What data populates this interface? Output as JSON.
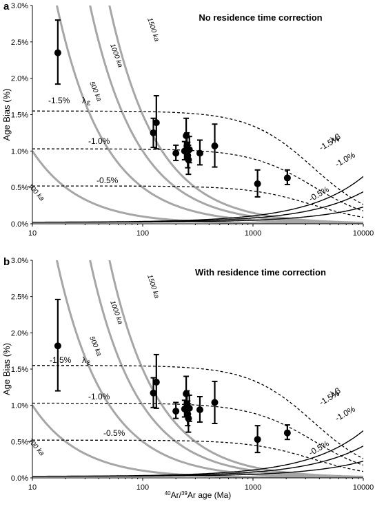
{
  "chart_data": [
    {
      "type": "scatter",
      "panel_label": "a",
      "title": "No residence time correction",
      "xlabel_parts": [
        "40",
        "Ar/",
        "39",
        "Ar age (Ma)"
      ],
      "ylabel": "Age Bias (%)",
      "xscale": "log",
      "xlim": [
        10,
        10000
      ],
      "ylim": [
        0,
        3.0
      ],
      "xticks": [
        "10",
        "100",
        "1000",
        "10000"
      ],
      "yticks": [
        "0.0%",
        "0.5%",
        "1.0%",
        "1.5%",
        "2.0%",
        "2.5%",
        "3.0%"
      ],
      "points": [
        {
          "x": 17,
          "y": 2.35,
          "err_low": 1.92,
          "err_high": 2.8
        },
        {
          "x": 125,
          "y": 1.25,
          "err_low": 1.05,
          "err_high": 1.45
        },
        {
          "x": 133,
          "y": 1.39,
          "err_low": 1.03,
          "err_high": 1.76
        },
        {
          "x": 200,
          "y": 0.97,
          "err_low": 0.87,
          "err_high": 1.08
        },
        {
          "x": 240,
          "y": 1.0,
          "err_low": 0.88,
          "err_high": 1.13
        },
        {
          "x": 248,
          "y": 1.21,
          "err_low": 0.98,
          "err_high": 1.45
        },
        {
          "x": 252,
          "y": 1.07,
          "err_low": 0.9,
          "err_high": 1.25
        },
        {
          "x": 256,
          "y": 0.94,
          "err_low": 0.77,
          "err_high": 1.12
        },
        {
          "x": 260,
          "y": 0.88,
          "err_low": 0.68,
          "err_high": 1.08
        },
        {
          "x": 265,
          "y": 1.02,
          "err_low": 0.84,
          "err_high": 1.2
        },
        {
          "x": 330,
          "y": 0.97,
          "err_low": 0.81,
          "err_high": 1.15
        },
        {
          "x": 450,
          "y": 1.07,
          "err_low": 0.78,
          "err_high": 1.37
        },
        {
          "x": 1100,
          "y": 0.55,
          "err_low": 0.37,
          "err_high": 0.74
        },
        {
          "x": 2050,
          "y": 0.63,
          "err_low": 0.54,
          "err_high": 0.74
        }
      ],
      "isochron_labels": [
        "100 ka",
        "500 ka",
        "1000 ka",
        "1500 ka"
      ],
      "lambda_e_labels": [
        "-1.5%",
        "-1.0%",
        "-0.5%"
      ],
      "lambda_e_symbol": "λ",
      "lambda_e_subscript": "ε",
      "lambda_b_labels": [
        "-1.5%",
        "-1.0%",
        "-0.5%"
      ],
      "lambda_b_symbol": "λ",
      "lambda_b_subscript": "β",
      "isochron_color": "#a6a6a6"
    },
    {
      "type": "scatter",
      "panel_label": "b",
      "title": "With residence time correction",
      "xlabel_parts": [
        "40",
        "Ar/",
        "39",
        "Ar age (Ma)"
      ],
      "ylabel": "Age Bias (%)",
      "xscale": "log",
      "xlim": [
        10,
        10000
      ],
      "ylim": [
        0,
        3.0
      ],
      "xticks": [
        "10",
        "100",
        "1000",
        "10000"
      ],
      "yticks": [
        "0.0%",
        "0.5%",
        "1.0%",
        "1.5%",
        "2.0%",
        "2.5%",
        "3.0%"
      ],
      "points": [
        {
          "x": 17,
          "y": 1.82,
          "err_low": 1.2,
          "err_high": 2.46
        },
        {
          "x": 125,
          "y": 1.17,
          "err_low": 0.97,
          "err_high": 1.38
        },
        {
          "x": 133,
          "y": 1.32,
          "err_low": 0.96,
          "err_high": 1.7
        },
        {
          "x": 200,
          "y": 0.92,
          "err_low": 0.82,
          "err_high": 1.04
        },
        {
          "x": 240,
          "y": 0.95,
          "err_low": 0.84,
          "err_high": 1.07
        },
        {
          "x": 248,
          "y": 1.16,
          "err_low": 0.93,
          "err_high": 1.4
        },
        {
          "x": 252,
          "y": 1.02,
          "err_low": 0.85,
          "err_high": 1.2
        },
        {
          "x": 256,
          "y": 0.88,
          "err_low": 0.72,
          "err_high": 1.06
        },
        {
          "x": 260,
          "y": 0.82,
          "err_low": 0.63,
          "err_high": 1.02
        },
        {
          "x": 265,
          "y": 0.96,
          "err_low": 0.78,
          "err_high": 1.14
        },
        {
          "x": 330,
          "y": 0.94,
          "err_low": 0.77,
          "err_high": 1.12
        },
        {
          "x": 450,
          "y": 1.04,
          "err_low": 0.75,
          "err_high": 1.33
        },
        {
          "x": 1100,
          "y": 0.53,
          "err_low": 0.35,
          "err_high": 0.72
        },
        {
          "x": 2050,
          "y": 0.62,
          "err_low": 0.53,
          "err_high": 0.73
        }
      ],
      "isochron_labels": [
        "100 ka",
        "500 ka",
        "1000 ka",
        "1500 ka"
      ],
      "lambda_e_labels": [
        "-1.5%",
        "-1.0%",
        "-0.5%"
      ],
      "lambda_e_symbol": "λ",
      "lambda_e_subscript": "ε",
      "lambda_b_labels": [
        "-1.5%",
        "-1.0%",
        "-0.5%"
      ],
      "lambda_b_symbol": "λ",
      "lambda_b_subscript": "β",
      "isochron_color": "#a6a6a6"
    }
  ]
}
